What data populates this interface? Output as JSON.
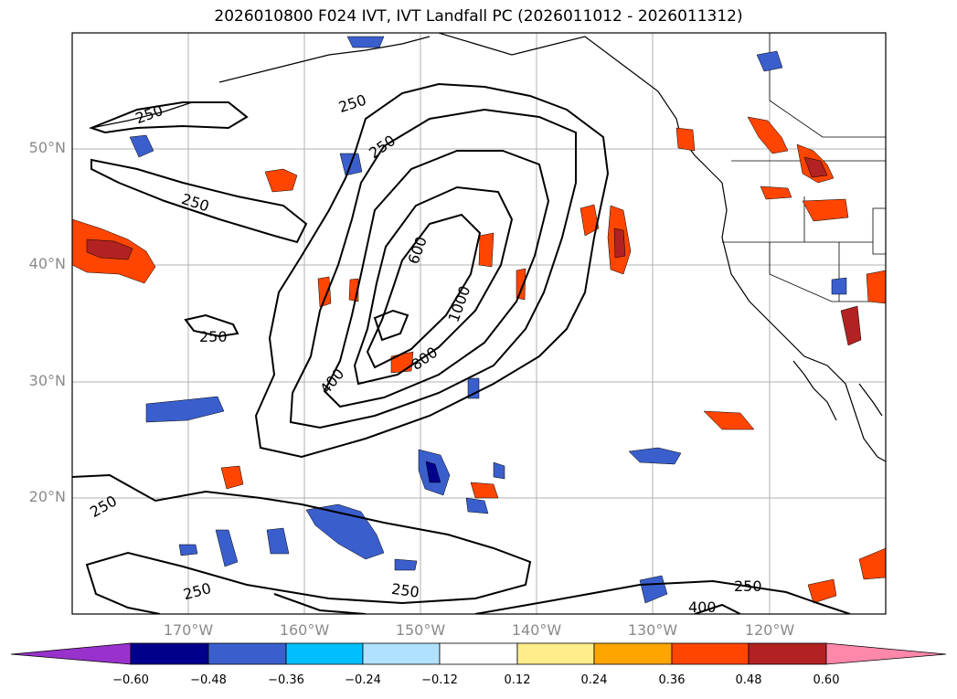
{
  "title": "2026010800 F024 IVT, IVT Landfall PC (2026011012 - 2026011312)",
  "latitude_labels": [
    "50°N",
    "40°N",
    "30°N",
    "20°N"
  ],
  "longitude_labels": [
    "170°W",
    "160°W",
    "150°W",
    "140°W",
    "130°W",
    "120°W"
  ],
  "contour_labels": [
    "250",
    "250",
    "250",
    "250",
    "250",
    "250",
    "250",
    "250",
    "250",
    "400",
    "400",
    "600",
    "800",
    "1000"
  ],
  "colorbar": {
    "ticks": [
      "−0.60",
      "−0.48",
      "−0.36",
      "−0.24",
      "−0.12",
      "0.12",
      "0.24",
      "0.36",
      "0.48",
      "0.60"
    ],
    "colors": [
      "#9932cc",
      "#00008b",
      "#3a5fcd",
      "#00bfff",
      "#b0e2ff",
      "#ffffff",
      "#ffec8b",
      "#ffa500",
      "#ff4500",
      "#b22222",
      "#ff88aa"
    ]
  },
  "colors": {
    "positive_high": "#b22222",
    "positive_mid": "#ff4500",
    "positive_low": "#ffa500",
    "negative_low": "#00bfff",
    "negative_mid": "#3a5fcd",
    "negative_high": "#00008b"
  }
}
